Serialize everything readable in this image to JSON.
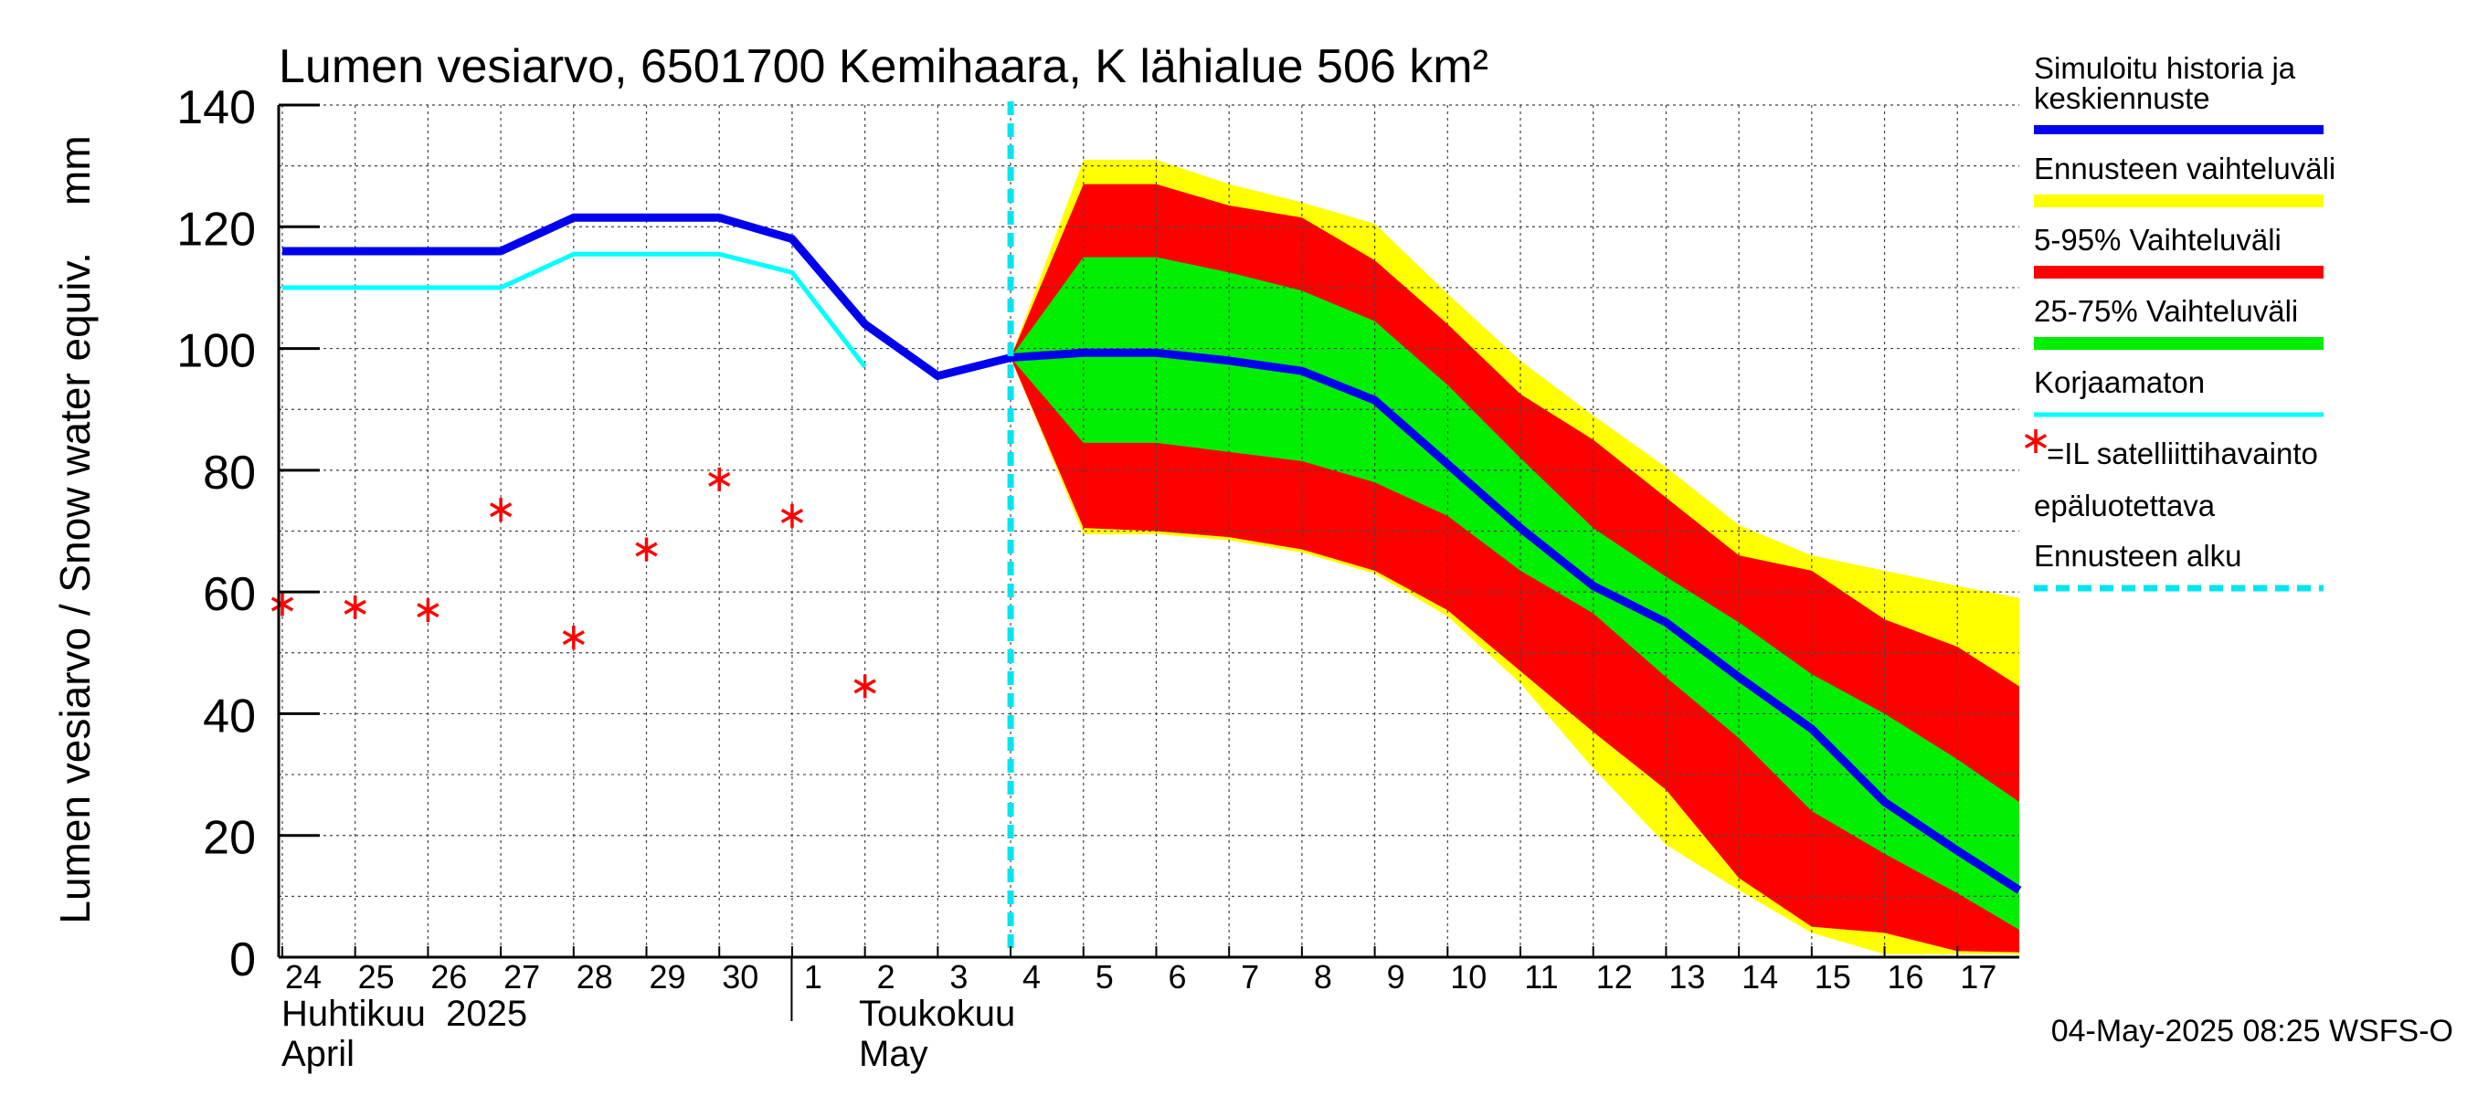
{
  "chart_data": {
    "type": "area",
    "title": "Lumen vesiarvo, 6501700 Kemihaara, K lähialue 506 km²",
    "ylabel": "Lumen vesiarvo / Snow water equiv.    mm",
    "ylim": [
      0,
      140
    ],
    "yticks": [
      "0",
      "20",
      "40",
      "60",
      "80",
      "100",
      "120",
      "140"
    ],
    "xlim": [
      -0.05,
      23.85
    ],
    "day_labels": [
      "24",
      "25",
      "26",
      "27",
      "28",
      "29",
      "30",
      "1",
      "2",
      "3",
      "4",
      "5",
      "6",
      "7",
      "8",
      "9",
      "10",
      "11",
      "12",
      "13",
      "14",
      "15",
      "16",
      "17"
    ],
    "month_labels": {
      "april_fi": "Huhtikuu  2025",
      "april_en": "April",
      "may_fi": "Toukokuu",
      "may_en": "May"
    },
    "month_boundary_x": 7.0,
    "forecast_start_x": 10.0,
    "footer": "04-May-2025 08:25 WSFS-O",
    "colors": {
      "simulated": "#0000ee",
      "range_full": "#ffff00",
      "range_5_95": "#ff0000",
      "range_25_75": "#00ee00",
      "uncorrected": "#00ffff",
      "satellite": "#ff0000",
      "forecast_start": "#00e5ee"
    },
    "legend": [
      {
        "label": "Simuloitu historia ja keskiennuste",
        "color": "#0000ee",
        "style": "thick"
      },
      {
        "label": "Ennusteen vaihteluväli",
        "color": "#ffff00",
        "style": "thick"
      },
      {
        "label": "5-95% Vaihteluväli",
        "color": "#ff0000",
        "style": "thick"
      },
      {
        "label": "25-75% Vaihteluväli",
        "color": "#00ee00",
        "style": "thick"
      },
      {
        "label": "Korjaamaton",
        "color": "#00ffff",
        "style": "thin"
      },
      {
        "label": "=IL satelliittihavainto",
        "label2": "epäluotettava",
        "color": "#ff0000",
        "style": "star"
      },
      {
        "label": "Ennusteen alku",
        "color": "#00e5ee",
        "style": "dashed"
      }
    ],
    "series": [
      {
        "name": "Simuloitu historia ja keskiennuste",
        "x": [
          0,
          1,
          2,
          3,
          4,
          5,
          6,
          7,
          8,
          9,
          10,
          11,
          12,
          13,
          14,
          15,
          16,
          17,
          18,
          19,
          20,
          21,
          22,
          23,
          23.85
        ],
        "values": [
          116,
          116,
          116,
          116,
          121.5,
          121.5,
          121.5,
          118,
          104,
          95.5,
          98.5,
          99.3,
          99.3,
          98,
          96.3,
          91.5,
          81,
          70.5,
          61,
          55,
          46,
          37.5,
          25.5,
          17.5,
          11
        ]
      },
      {
        "name": "Korjaamaton",
        "x": [
          0,
          1,
          2,
          3,
          4,
          5,
          6,
          7,
          8
        ],
        "values": [
          110,
          110,
          110,
          110,
          115.5,
          115.5,
          115.5,
          112.5,
          97
        ]
      },
      {
        "name": "Ennusteen vaihteluväli",
        "x": [
          10,
          11,
          12,
          13,
          14,
          15,
          16,
          17,
          18,
          19,
          20,
          21,
          22,
          23,
          23.85
        ],
        "low": [
          98.5,
          69.5,
          69.5,
          68.5,
          66.5,
          63,
          56,
          45,
          31,
          18.5,
          11,
          4,
          0.5,
          0.5,
          0.5
        ],
        "high": [
          98.5,
          131,
          131,
          127,
          124,
          120.5,
          109,
          98,
          89,
          80.5,
          71,
          66,
          63.5,
          61,
          59
        ]
      },
      {
        "name": "5-95% Vaihteluväli",
        "x": [
          10,
          11,
          12,
          13,
          14,
          15,
          16,
          17,
          18,
          19,
          20,
          21,
          22,
          23,
          23.85
        ],
        "low": [
          98.5,
          70.5,
          70,
          69,
          67,
          63.5,
          57,
          47,
          37,
          27.5,
          13,
          5,
          4,
          1,
          0.8
        ],
        "high": [
          98.5,
          127,
          127,
          123.5,
          121.5,
          114.5,
          104,
          92.5,
          85,
          75.5,
          66,
          63.5,
          55.5,
          51,
          44.5
        ]
      },
      {
        "name": "25-75% Vaihteluväli",
        "x": [
          10,
          11,
          12,
          13,
          14,
          15,
          16,
          17,
          18,
          19,
          20,
          21,
          22,
          23,
          23.85
        ],
        "low": [
          98.5,
          84.5,
          84.5,
          83,
          81.5,
          78,
          72.5,
          63.5,
          56.5,
          46,
          36,
          24,
          17,
          10.5,
          4.5
        ],
        "high": [
          98.5,
          115,
          115,
          112.5,
          109.5,
          104.5,
          94,
          82,
          70.5,
          62.5,
          55,
          46.5,
          40,
          32.5,
          25.5
        ]
      }
    ],
    "satellite_points": {
      "name": "=IL satelliittihavainto epäluotettava",
      "x": [
        0,
        1,
        2,
        3,
        4,
        5,
        6,
        7,
        8
      ],
      "values": [
        58,
        57.5,
        57,
        73.5,
        52.5,
        67,
        78.5,
        72.5,
        44.5
      ]
    }
  }
}
